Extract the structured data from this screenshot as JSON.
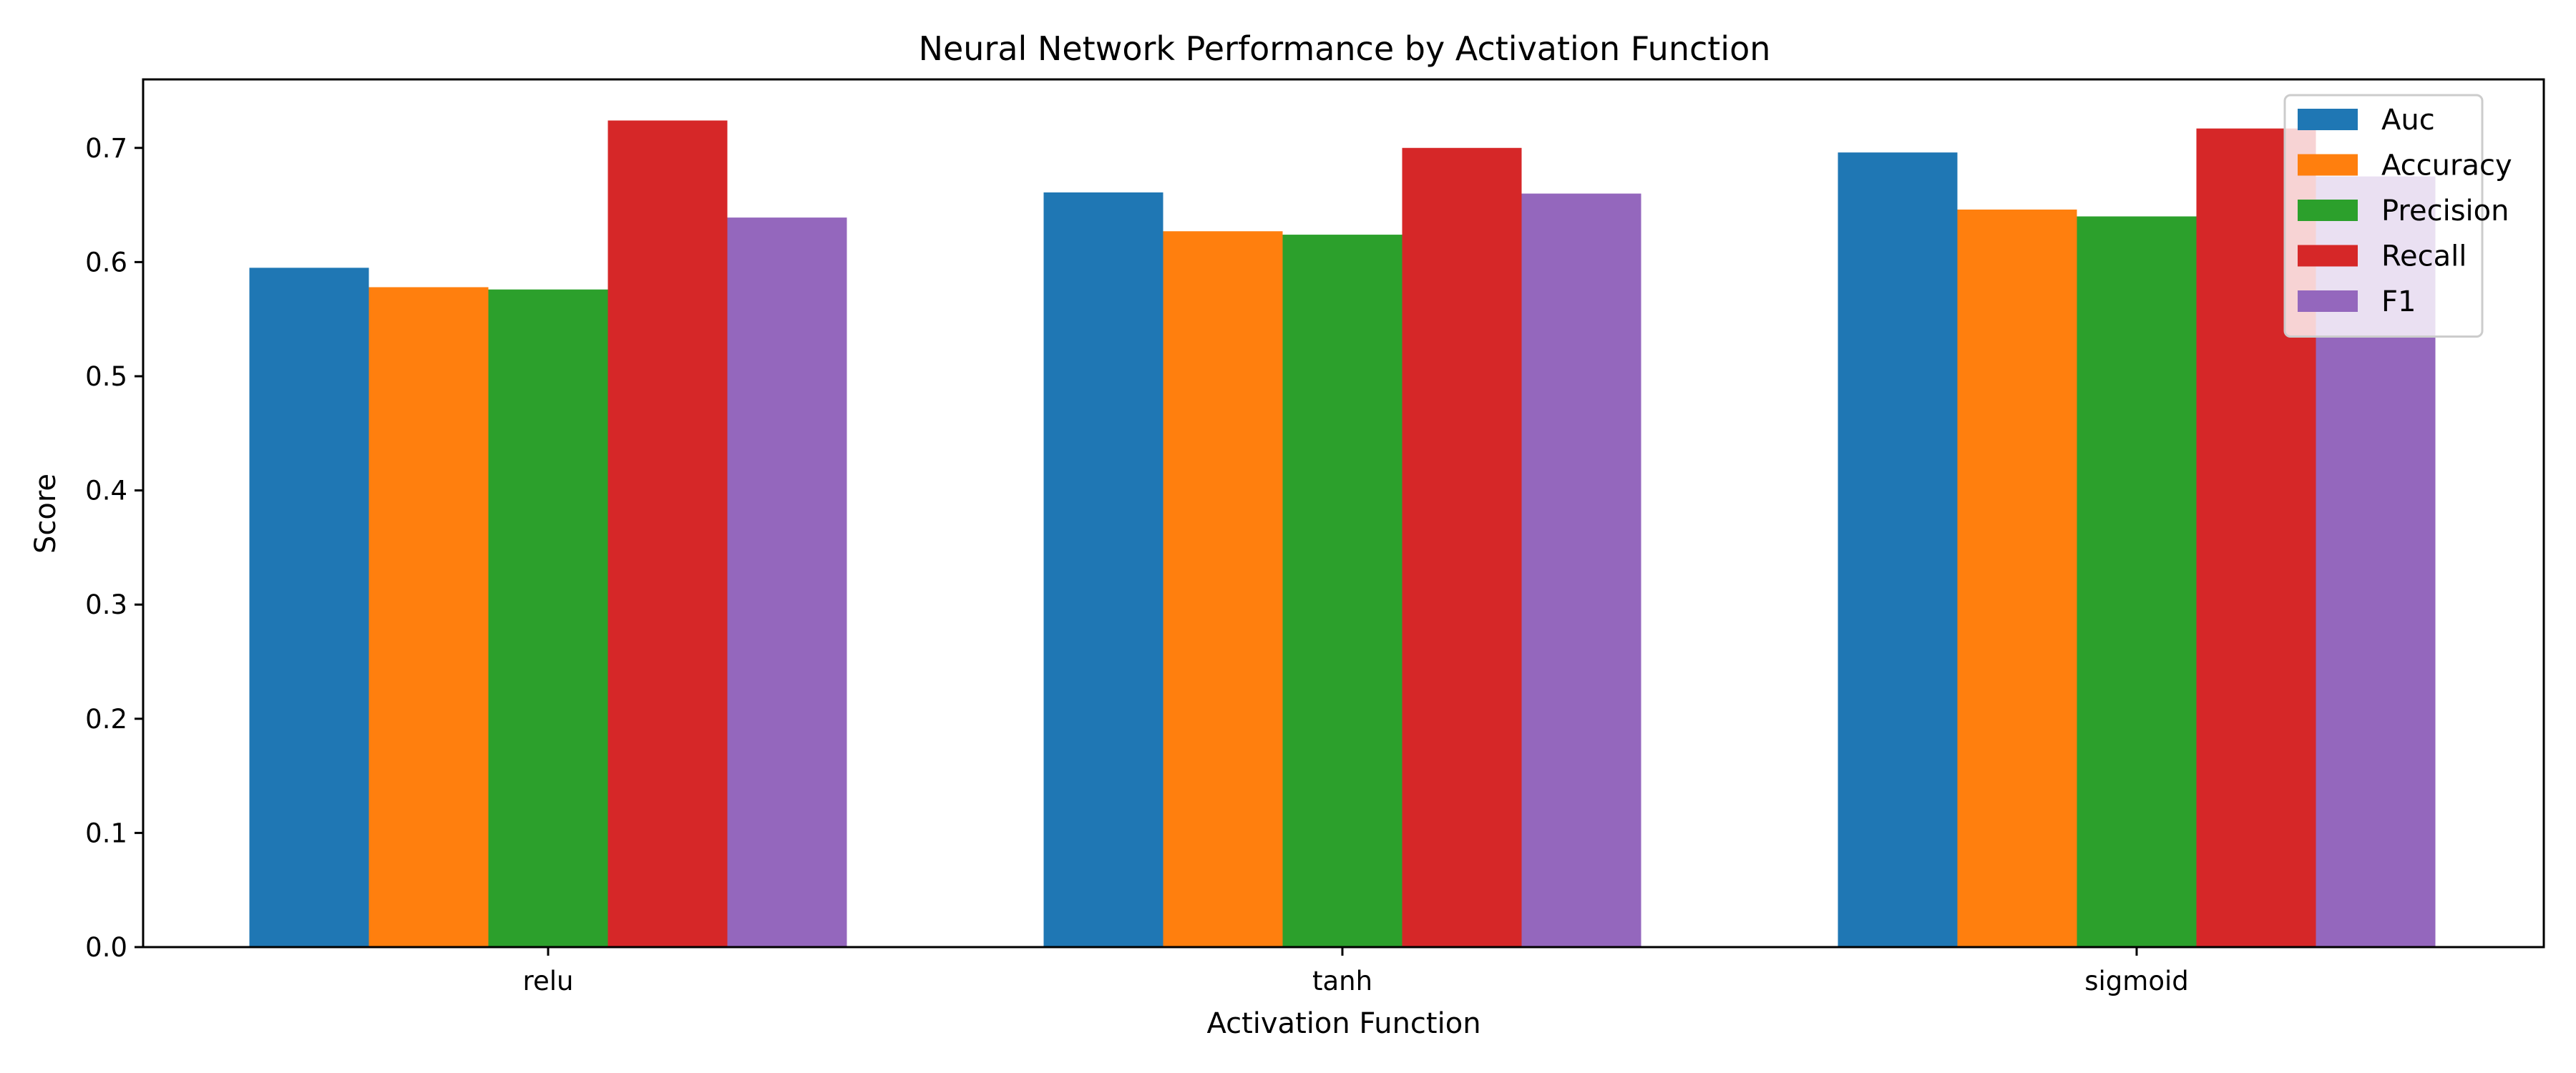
{
  "chart_data": {
    "type": "bar",
    "title": "Neural Network Performance by Activation Function",
    "xlabel": "Activation Function",
    "ylabel": "Score",
    "categories": [
      "relu",
      "tanh",
      "sigmoid"
    ],
    "series": [
      {
        "name": "Auc",
        "color": "#1f77b4",
        "values": [
          0.595,
          0.661,
          0.696
        ]
      },
      {
        "name": "Accuracy",
        "color": "#ff7f0e",
        "values": [
          0.578,
          0.627,
          0.646
        ]
      },
      {
        "name": "Precision",
        "color": "#2ca02c",
        "values": [
          0.576,
          0.624,
          0.64
        ]
      },
      {
        "name": "Recall",
        "color": "#d62728",
        "values": [
          0.724,
          0.7,
          0.717
        ]
      },
      {
        "name": "F1",
        "color": "#9467bd",
        "values": [
          0.639,
          0.66,
          0.675
        ]
      }
    ],
    "ylim": [
      0,
      0.76
    ],
    "yticks": [
      "0.0",
      "0.1",
      "0.2",
      "0.3",
      "0.4",
      "0.5",
      "0.6",
      "0.7"
    ],
    "grid": false,
    "legend_position": "top-right"
  }
}
